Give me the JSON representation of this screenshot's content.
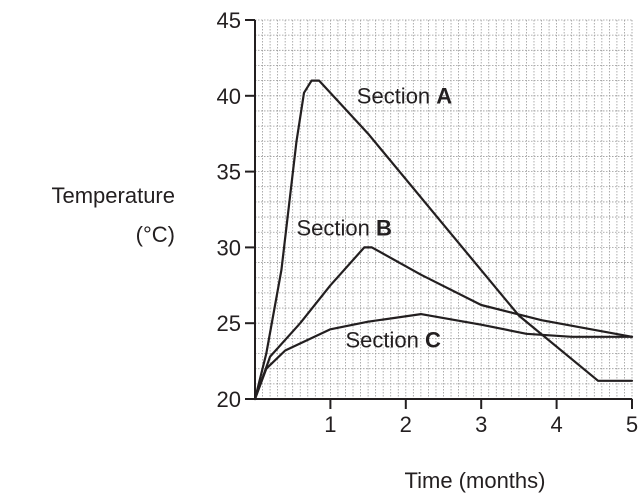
{
  "chart_data": {
    "type": "line",
    "title": "",
    "xlabel": "Time (months)",
    "ylabel_line1": "Temperature",
    "ylabel_line2": "(°C)",
    "xlim": [
      0,
      5
    ],
    "ylim": [
      20,
      45
    ],
    "x_ticks": [
      1,
      2,
      3,
      4,
      5
    ],
    "y_ticks": [
      20,
      25,
      30,
      35,
      40,
      45
    ],
    "grid": true,
    "series": [
      {
        "name": "A",
        "label_prefix": "Section ",
        "label_bold": "A",
        "label_at": [
          1.35,
          39.5
        ],
        "points": [
          [
            0,
            20
          ],
          [
            0.15,
            23
          ],
          [
            0.35,
            28.5
          ],
          [
            0.55,
            37
          ],
          [
            0.65,
            40.2
          ],
          [
            0.75,
            41
          ],
          [
            0.85,
            41
          ],
          [
            1.5,
            37.5
          ],
          [
            2.5,
            31.5
          ],
          [
            3.5,
            25.5
          ],
          [
            4.55,
            21.2
          ],
          [
            5,
            21.2
          ]
        ]
      },
      {
        "name": "B",
        "label_prefix": "Section ",
        "label_bold": "B",
        "label_at": [
          0.55,
          30.8
        ],
        "points": [
          [
            0,
            20
          ],
          [
            0.2,
            22.8
          ],
          [
            0.6,
            25
          ],
          [
            1.0,
            27.5
          ],
          [
            1.45,
            30
          ],
          [
            1.55,
            30
          ],
          [
            2.2,
            28.2
          ],
          [
            3.0,
            26.2
          ],
          [
            3.8,
            25.2
          ],
          [
            5,
            24.1
          ]
        ]
      },
      {
        "name": "C",
        "label_prefix": "Section ",
        "label_bold": "C",
        "label_at": [
          1.2,
          23.4
        ],
        "points": [
          [
            0,
            20
          ],
          [
            0.15,
            22
          ],
          [
            0.4,
            23.2
          ],
          [
            1.0,
            24.6
          ],
          [
            1.5,
            25.1
          ],
          [
            2.2,
            25.6
          ],
          [
            3.0,
            24.9
          ],
          [
            3.6,
            24.3
          ],
          [
            4.2,
            24.1
          ],
          [
            5,
            24.1
          ]
        ]
      }
    ]
  }
}
